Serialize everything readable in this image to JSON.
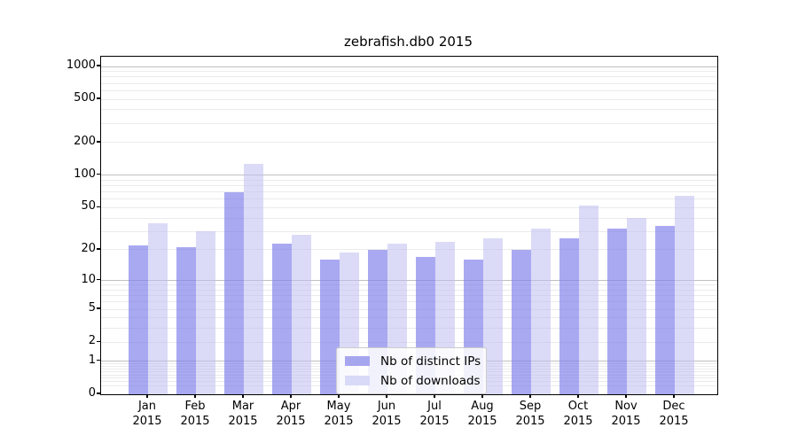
{
  "title": "zebrafish.db0 2015",
  "chart_data": {
    "type": "bar",
    "title": "zebrafish.db0 2015",
    "x_month_labels": [
      "Jan",
      "Feb",
      "Mar",
      "Apr",
      "May",
      "Jun",
      "Jul",
      "Aug",
      "Sep",
      "Oct",
      "Nov",
      "Dec"
    ],
    "x_year_label": "2015",
    "categories": [
      "Jan 2015",
      "Feb 2015",
      "Mar 2015",
      "Apr 2015",
      "May 2015",
      "Jun 2015",
      "Jul 2015",
      "Aug 2015",
      "Sep 2015",
      "Oct 2015",
      "Nov 2015",
      "Dec 2015"
    ],
    "series": [
      {
        "name": "Nb of distinct IPs",
        "swatch_color": "#a6a6ef",
        "bar_fill": "rgba(125,125,235,0.66)",
        "values": [
          22,
          21,
          70,
          23,
          16,
          20,
          17,
          16,
          20,
          26,
          32,
          34
        ]
      },
      {
        "name": "Nb of downloads",
        "swatch_color": "#d9d9f8",
        "bar_fill": "rgba(190,190,240,0.55)",
        "values": [
          36,
          30,
          127,
          28,
          19,
          23,
          24,
          26,
          32,
          52,
          40,
          65
        ]
      }
    ],
    "y_scale": "log1p",
    "y_tick_values": [
      0,
      1,
      2,
      5,
      10,
      20,
      50,
      100,
      200,
      500,
      1000
    ],
    "y_tick_labels": [
      "0",
      "1",
      "2",
      "5",
      "10",
      "20",
      "50",
      "100",
      "200",
      "500",
      "1000"
    ],
    "y_major_gridline_values": [
      1,
      10,
      100,
      1000
    ],
    "ylim": [
      0,
      1120
    ],
    "grid": "on",
    "legend_position": "lower-center",
    "colors": {
      "major_grid": "#c0c0c0",
      "minor_grid": "#ebebeb",
      "axis": "#000000",
      "background": "#ffffff"
    }
  }
}
